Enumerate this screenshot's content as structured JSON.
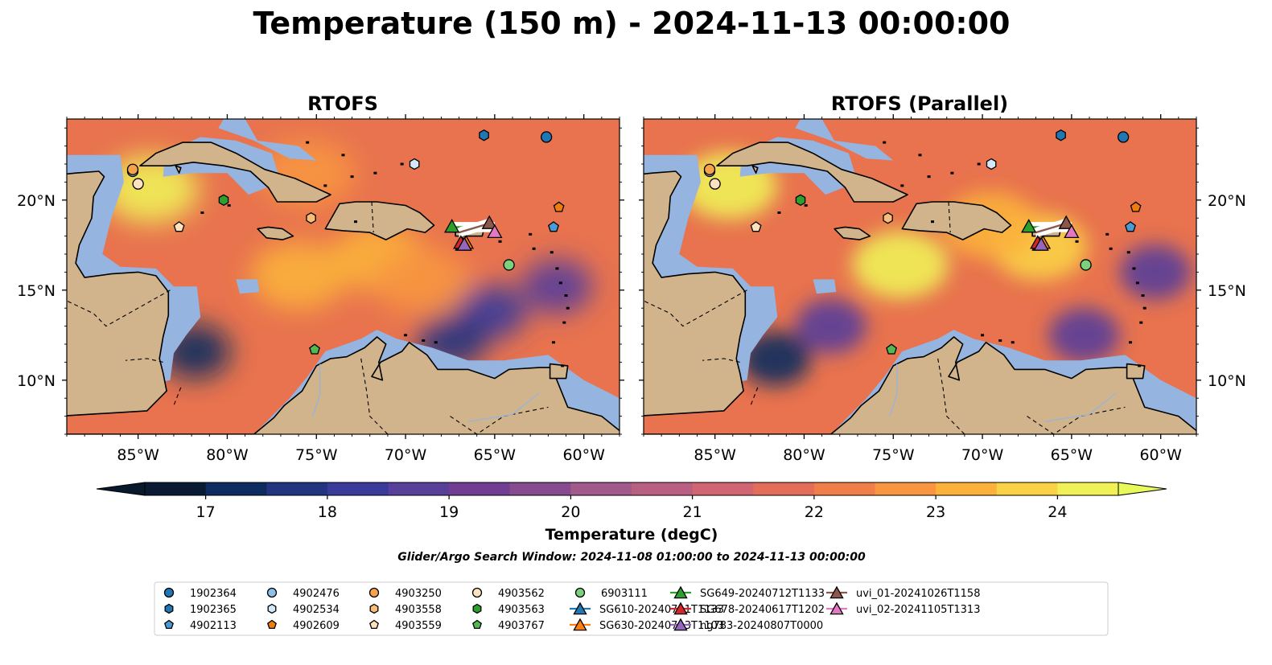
{
  "title": "Temperature (150 m) - 2024-11-13 00:00:00",
  "chart_data": {
    "type": "map",
    "extent": {
      "lon": [
        -89,
        -58
      ],
      "lat": [
        7,
        24.5
      ]
    },
    "xticks": [
      -85,
      -80,
      -75,
      -70,
      -65,
      -60
    ],
    "xtick_labels": [
      "85°W",
      "80°W",
      "75°W",
      "70°W",
      "65°W",
      "60°W"
    ],
    "yticks": [
      10,
      15,
      20
    ],
    "ytick_labels": [
      "10°N",
      "15°N",
      "20°N"
    ],
    "panels": [
      {
        "title": "RTOFS",
        "warm_cells": [
          {
            "lon": -84.3,
            "lat": 20.6,
            "t": 24.2
          },
          {
            "lon": -76,
            "lat": 15.8,
            "t": 23.3
          },
          {
            "lon": -71.5,
            "lat": 16.8,
            "t": 23.0
          },
          {
            "lon": -69,
            "lat": 15.5,
            "t": 22.6
          },
          {
            "lon": -75.5,
            "lat": 21.5,
            "t": 22.5
          }
        ],
        "cold_cells": [
          {
            "lon": -81.8,
            "lat": 11.6,
            "t": 17.1
          },
          {
            "lon": -65.2,
            "lat": 13.8,
            "t": 18.4
          },
          {
            "lon": -61.5,
            "lat": 15.2,
            "t": 18.5
          },
          {
            "lon": -67.4,
            "lat": 12.2,
            "t": 17.8
          }
        ]
      },
      {
        "title": "RTOFS (Parallel)",
        "warm_cells": [
          {
            "lon": -84.2,
            "lat": 20.8,
            "t": 24.3
          },
          {
            "lon": -74.6,
            "lat": 16.4,
            "t": 24.0
          },
          {
            "lon": -66.8,
            "lat": 17.4,
            "t": 23.5
          },
          {
            "lon": -69.5,
            "lat": 18.6,
            "t": 23.0
          }
        ],
        "cold_cells": [
          {
            "lon": -81.6,
            "lat": 11.2,
            "t": 17.4
          },
          {
            "lon": -78.5,
            "lat": 13,
            "t": 18.8
          },
          {
            "lon": -60.3,
            "lat": 16,
            "t": 18.6
          },
          {
            "lon": -64.3,
            "lat": 12.5,
            "t": 18.7
          }
        ]
      }
    ],
    "colorbar": {
      "label": "Temperature (degC)",
      "min": 16.5,
      "max": 24.5,
      "step": 0.5,
      "ticks": [
        17,
        18,
        19,
        20,
        21,
        22,
        23,
        24
      ],
      "colors": [
        "#0a1a33",
        "#0d2b5e",
        "#22337f",
        "#3a3a9a",
        "#583f9a",
        "#703f92",
        "#884a8e",
        "#a15a8c",
        "#b95f82",
        "#cf6672",
        "#e26d5a",
        "#f07e48",
        "#f79540",
        "#fbb13c",
        "#f9d247",
        "#eff157"
      ],
      "under": "#07192b",
      "over": "#e8fa5b"
    },
    "platforms": [
      {
        "name": "1902364",
        "marker": "circle",
        "color": "#1f77b4",
        "lon": -62.1,
        "lat": 23.5
      },
      {
        "name": "1902365",
        "marker": "hexagon",
        "color": "#1f77b4",
        "lon": -65.6,
        "lat": 23.6
      },
      {
        "name": "4902113",
        "marker": "pentagon",
        "color": "#4a9ad6",
        "lon": -61.7,
        "lat": 18.5
      },
      {
        "name": "4902476",
        "marker": "circle",
        "color": "#8ebfe6",
        "lon": -85.3,
        "lat": 21.6
      },
      {
        "name": "4902534",
        "marker": "hexagon",
        "color": "#d3e8f8",
        "lon": -69.5,
        "lat": 22.0
      },
      {
        "name": "4902609",
        "marker": "pentagon",
        "color": "#ee7d0e",
        "lon": -61.4,
        "lat": 19.6
      },
      {
        "name": "4903250",
        "marker": "circle",
        "color": "#f6a24c",
        "lon": -85.3,
        "lat": 21.7
      },
      {
        "name": "4903558",
        "marker": "hexagon",
        "color": "#f9bd7a",
        "lon": -75.3,
        "lat": 19.0
      },
      {
        "name": "4903559",
        "marker": "pentagon",
        "color": "#fde2bb",
        "lon": -82.7,
        "lat": 18.5
      },
      {
        "name": "4903562",
        "marker": "circle",
        "color": "#fce1c2",
        "lon": -85.0,
        "lat": 20.9
      },
      {
        "name": "4903563",
        "marker": "hexagon",
        "color": "#2ca02c",
        "lon": -80.2,
        "lat": 20.0
      },
      {
        "name": "4903767",
        "marker": "pentagon",
        "color": "#52b852",
        "lon": -75.1,
        "lat": 11.7
      },
      {
        "name": "6903111",
        "marker": "circle",
        "color": "#7cd27c",
        "lon": -64.2,
        "lat": 16.4
      },
      {
        "name": "SG610-20240711T1133",
        "marker": "triangle",
        "color": "#1f77b4",
        "lon": -66.8,
        "lat": 17.5
      },
      {
        "name": "SG630-20240713T1103",
        "marker": "triangle",
        "color": "#ff7f0e",
        "lon": -66.6,
        "lat": 17.6
      },
      {
        "name": "SG649-20240712T1133",
        "marker": "triangle",
        "color": "#2ca02c",
        "lon": -67.4,
        "lat": 18.5
      },
      {
        "name": "SG678-20240617T1202",
        "marker": "triangle",
        "color": "#d62728",
        "lon": -66.9,
        "lat": 17.6
      },
      {
        "name": "ng783-20240807T0000",
        "marker": "triangle",
        "color": "#9467bd",
        "lon": -66.7,
        "lat": 17.5
      },
      {
        "name": "uvi_01-20241026T1158",
        "marker": "triangle",
        "color": "#8c564b",
        "lon": -65.3,
        "lat": 18.7
      },
      {
        "name": "uvi_02-20241105T1313",
        "marker": "triangle",
        "color": "#e377c2",
        "lon": -65.0,
        "lat": 18.2
      }
    ],
    "glider_tracks": [
      {
        "name": "SG649-20240712T1133",
        "color": "#2ca02c",
        "lon": [
          -67.4,
          -65.0
        ],
        "lat": [
          18.5,
          18.5
        ]
      },
      {
        "name": "uvi_01-20241026T1158",
        "color": "#8c564b",
        "lon": [
          -67.0,
          -65.3
        ],
        "lat": [
          18.2,
          18.7
        ]
      }
    ]
  },
  "search_window": "Glider/Argo Search Window: 2024-11-08 01:00:00 to 2024-11-13 00:00:00"
}
